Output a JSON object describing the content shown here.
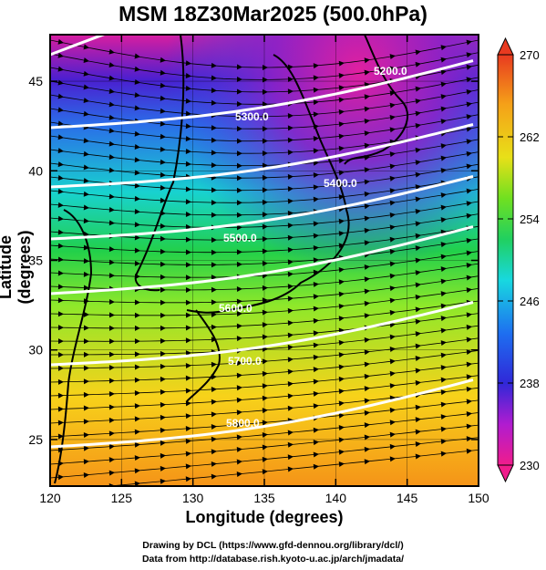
{
  "title": "MSM 18Z30Mar2025 (500.0hPa)",
  "xaxis": {
    "label": "Longitude (degrees)",
    "ticks": [
      "120",
      "125",
      "130",
      "135",
      "140",
      "145",
      "150"
    ],
    "range": [
      120,
      150
    ]
  },
  "yaxis": {
    "label": "Latitude  (degrees)",
    "ticks": [
      "25",
      "30",
      "35",
      "40",
      "45"
    ],
    "range": [
      22.4,
      47.6
    ]
  },
  "colorbar": {
    "ticks": [
      "270",
      "262",
      "254",
      "246",
      "238",
      "230"
    ],
    "range": [
      230,
      270
    ],
    "unit_hint": "temperature (K)"
  },
  "contours": [
    {
      "label": "5200.0"
    },
    {
      "label": "5300.0"
    },
    {
      "label": "5400.0"
    },
    {
      "label": "5500.0"
    },
    {
      "label": "5600.0"
    },
    {
      "label": "5700.0"
    },
    {
      "label": "5800.0"
    }
  ],
  "credits": {
    "line1": "Drawing by DCL (https://www.gfd-dennou.org/library/dcl/)",
    "line2": "Data from http://database.rish.kyoto-u.ac.jp/arch/jmadata/"
  },
  "colors": {
    "cold": "#e0209a",
    "mid": "#30d040",
    "warm": "#f59418",
    "contour": "#ffffff"
  }
}
